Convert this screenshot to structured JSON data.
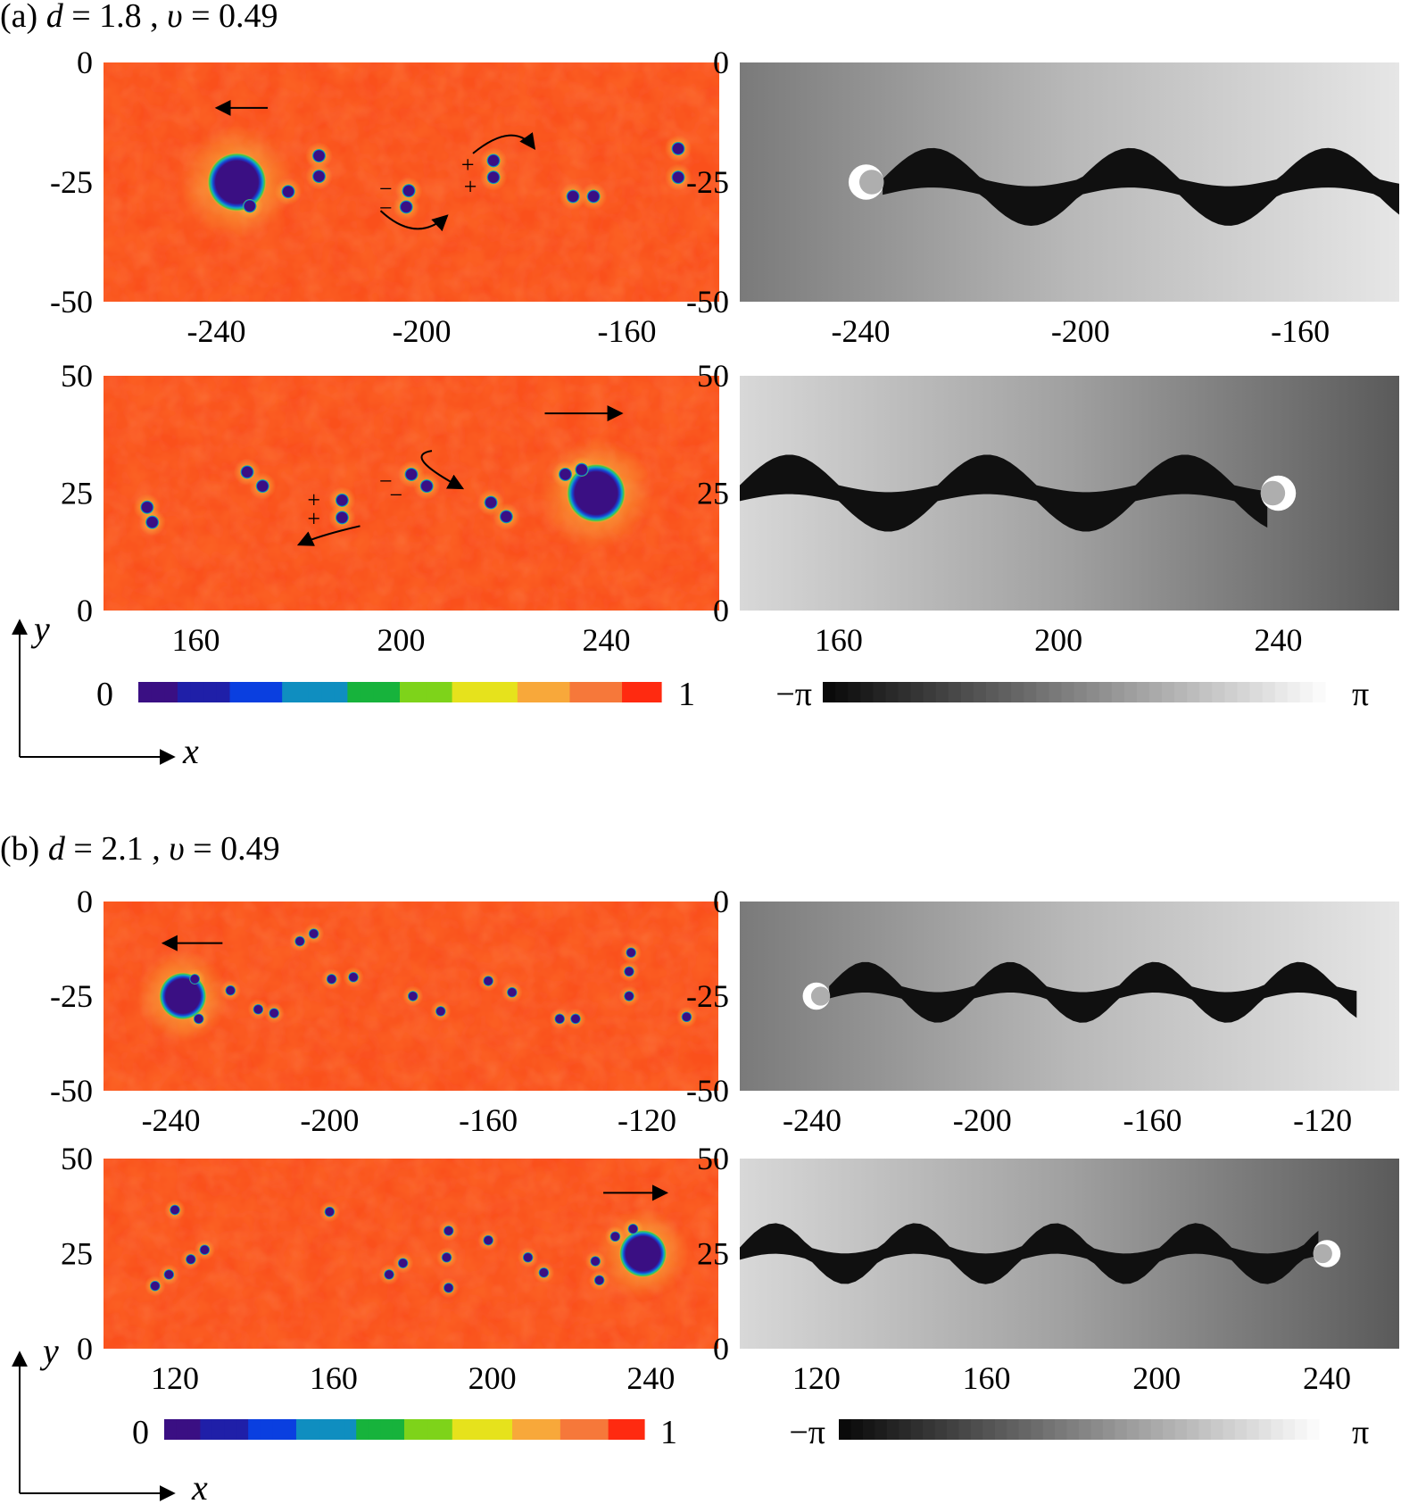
{
  "colors": {
    "density_scale": [
      "#3a0f83",
      "#1f1fa8",
      "#0a3fe0",
      "#0f8ec0",
      "#17b33c",
      "#7ed31a",
      "#e6e21c",
      "#f8a83a",
      "#f6783a",
      "#ff2a10"
    ],
    "field_background": "#f56a2e",
    "vortex_core": "#3a0f83",
    "vortex_ring": "#0f9ad0",
    "halo": "#e8c838"
  },
  "chart_data": [
    {
      "id": "a_density_top",
      "panel": "(a)",
      "type": "heatmap",
      "field": "density",
      "title_parts": [
        "(a) ",
        "d",
        " = 1.8 , ",
        "υ",
        " = 0.49"
      ],
      "xticks": [
        -240,
        -200,
        -160
      ],
      "yticks": [
        0,
        -25,
        -50
      ],
      "xlim": [
        -262,
        -142
      ],
      "ylim": [
        -50,
        0
      ],
      "vortices": [
        [
          -236,
          -25,
          4.6
        ],
        [
          -233.5,
          -30,
          1.1
        ],
        [
          -226,
          -27,
          1.1
        ],
        [
          -220,
          -19.5,
          1.1
        ],
        [
          -220,
          -23.8,
          1.1
        ],
        [
          -202.5,
          -26.8,
          1.1
        ],
        [
          -203,
          -30.2,
          1.1
        ],
        [
          -186,
          -20.5,
          1.1
        ],
        [
          -186,
          -24,
          1.1
        ],
        [
          -170.5,
          -28,
          1.1
        ],
        [
          -166.5,
          -28,
          1.1
        ],
        [
          -150,
          -18,
          1.1
        ],
        [
          -150,
          -24,
          1.1
        ]
      ],
      "signs": [
        [
          "−",
          -207,
          -26.5
        ],
        [
          "−",
          -207,
          -30.5
        ],
        [
          "+",
          -191,
          -21.5
        ],
        [
          "+",
          -190.5,
          -26
        ]
      ],
      "arrows": [
        [
          -230,
          -9.5,
          -240,
          -9.5
        ]
      ],
      "arc_arrows": [
        [
          -208,
          -31,
          -195,
          -32,
          -201,
          -38
        ],
        [
          -190,
          -19,
          -178,
          -18,
          -182,
          -12
        ]
      ]
    },
    {
      "id": "a_phase_top",
      "panel": "(a)",
      "type": "heatmap",
      "field": "phase",
      "xticks": [
        -240,
        -200,
        -160
      ],
      "yticks": [
        0,
        -25,
        -50
      ],
      "xlim": [
        -262,
        -142
      ],
      "ylim": [
        -50,
        0
      ],
      "defect": [
        -239,
        -25,
        3.2
      ],
      "wave": [
        -236,
        -25,
        -142,
        36,
        -26
      ]
    },
    {
      "id": "a_density_bottom",
      "panel": "(a)",
      "type": "heatmap",
      "field": "density",
      "xticks": [
        160,
        200,
        240
      ],
      "yticks": [
        50,
        25,
        0
      ],
      "xlim": [
        142,
        262
      ],
      "ylim": [
        0,
        50
      ],
      "vortices": [
        [
          238,
          25,
          4.6
        ],
        [
          235.2,
          30,
          1.1
        ],
        [
          232,
          29,
          1.1
        ],
        [
          150.5,
          22,
          1.1
        ],
        [
          151.5,
          18.8,
          1.1
        ],
        [
          170,
          29.5,
          1.1
        ],
        [
          173,
          26.5,
          1.1
        ],
        [
          188.5,
          23.5,
          1.1
        ],
        [
          188.5,
          19.8,
          1.1
        ],
        [
          202,
          29,
          1.1
        ],
        [
          205,
          26.5,
          1.1
        ],
        [
          217.5,
          23,
          1.1
        ],
        [
          220.5,
          20,
          1.1
        ]
      ],
      "signs": [
        [
          "+",
          183,
          23.5
        ],
        [
          "+",
          183,
          19.5
        ],
        [
          "−",
          197,
          27.5
        ],
        [
          "−",
          199,
          24.5
        ]
      ],
      "arrows": [
        [
          228,
          42,
          243,
          42
        ]
      ],
      "arc_arrows": [
        [
          206,
          34,
          212,
          26,
          200,
          33
        ],
        [
          192,
          18,
          180,
          14,
          184,
          16
        ]
      ]
    },
    {
      "id": "a_phase_bottom",
      "panel": "(a)",
      "type": "heatmap",
      "field": "phase",
      "xticks": [
        160,
        200,
        240
      ],
      "yticks": [
        50,
        25,
        0
      ],
      "xlim": [
        142,
        262
      ],
      "ylim": [
        0,
        50
      ],
      "defect": [
        240,
        25,
        3.2
      ],
      "wave": [
        142,
        14,
        238,
        36,
        25
      ]
    },
    {
      "id": "b_density_top",
      "panel": "(b)",
      "type": "heatmap",
      "field": "density",
      "title_parts": [
        "(b) ",
        "d",
        " = 2.1 , ",
        "υ",
        " = 0.49"
      ],
      "xticks": [
        -240,
        -200,
        -160,
        -120
      ],
      "yticks": [
        0,
        -25,
        -50
      ],
      "xlim": [
        -257,
        -102
      ],
      "ylim": [
        -50,
        0
      ],
      "vortices": [
        [
          -237,
          -25,
          4.8
        ],
        [
          -234,
          -20.5,
          1.1
        ],
        [
          -233,
          -31,
          1.1
        ],
        [
          -225,
          -23.5,
          1.1
        ],
        [
          -218,
          -28.5,
          1.1
        ],
        [
          -214,
          -29.5,
          1.1
        ],
        [
          -207.5,
          -10.5,
          1.1
        ],
        [
          -204,
          -8.5,
          1.1
        ],
        [
          -199.5,
          -20.5,
          1.1
        ],
        [
          -194,
          -20,
          1.1
        ],
        [
          -179,
          -25,
          1.1
        ],
        [
          -172,
          -29,
          1.1
        ],
        [
          -160,
          -21,
          1.1
        ],
        [
          -154,
          -24,
          1.1
        ],
        [
          -142,
          -31,
          1.1
        ],
        [
          -138,
          -31,
          1.1
        ],
        [
          -124,
          -13.5,
          1.1
        ],
        [
          -124.5,
          -18.5,
          1.1
        ],
        [
          -124.5,
          -25,
          1.1
        ],
        [
          -110,
          -30.5,
          1.1
        ]
      ],
      "signs": [],
      "arrows": [
        [
          -227,
          -11,
          -242,
          -11
        ]
      ],
      "arc_arrows": []
    },
    {
      "id": "b_phase_top",
      "panel": "(b)",
      "type": "heatmap",
      "field": "phase",
      "xticks": [
        -240,
        -200,
        -160,
        -120
      ],
      "yticks": [
        0,
        -25,
        -50
      ],
      "xlim": [
        -257,
        -102
      ],
      "ylim": [
        -50,
        0
      ],
      "defect": [
        -239,
        -25,
        3.2
      ],
      "wave": [
        -236,
        -25,
        -112,
        34,
        -24
      ]
    },
    {
      "id": "b_density_bottom",
      "panel": "(b)",
      "type": "heatmap",
      "field": "density",
      "xticks": [
        120,
        160,
        200,
        240
      ],
      "yticks": [
        50,
        25,
        0
      ],
      "xlim": [
        102,
        257
      ],
      "ylim": [
        0,
        50
      ],
      "vortices": [
        [
          238,
          25,
          4.8
        ],
        [
          235.5,
          31.5,
          1.1
        ],
        [
          231,
          29.5,
          1.1
        ],
        [
          226,
          23,
          1.1
        ],
        [
          227,
          18,
          1.1
        ],
        [
          213,
          20,
          1.1
        ],
        [
          209,
          24,
          1.1
        ],
        [
          199,
          28.5,
          1.1
        ],
        [
          189,
          31,
          1.1
        ],
        [
          188.5,
          24,
          1.1
        ],
        [
          189,
          16,
          1.1
        ],
        [
          177.5,
          22.5,
          1.1
        ],
        [
          174,
          19.5,
          1.1
        ],
        [
          159,
          36,
          1.1
        ],
        [
          120,
          36.5,
          1.1
        ],
        [
          127.5,
          26,
          1.1
        ],
        [
          124,
          23.5,
          1.1
        ],
        [
          118.5,
          19.5,
          1.1
        ],
        [
          115,
          16.5,
          1.1
        ]
      ],
      "signs": [],
      "arrows": [
        [
          228,
          41,
          244,
          41
        ]
      ],
      "arc_arrows": []
    },
    {
      "id": "b_phase_bottom",
      "panel": "(b)",
      "type": "heatmap",
      "field": "phase",
      "xticks": [
        120,
        160,
        200,
        240
      ],
      "yticks": [
        50,
        25,
        0
      ],
      "xlim": [
        102,
        257
      ],
      "ylim": [
        0,
        50
      ],
      "defect": [
        240,
        25,
        3.2
      ],
      "wave": [
        102,
        14,
        238,
        33,
        25
      ]
    }
  ],
  "colorbars": [
    {
      "id": "a_density_cbar",
      "min_label": "0",
      "max_label": "1",
      "kind": "density"
    },
    {
      "id": "a_phase_cbar",
      "min_label": "−π",
      "max_label": "π",
      "kind": "phase"
    },
    {
      "id": "b_density_cbar",
      "min_label": "0",
      "max_label": "1",
      "kind": "density"
    },
    {
      "id": "b_phase_cbar",
      "min_label": "−π",
      "max_label": "π",
      "kind": "phase"
    }
  ],
  "axes_key": {
    "x_label": "x",
    "y_label": "y"
  }
}
